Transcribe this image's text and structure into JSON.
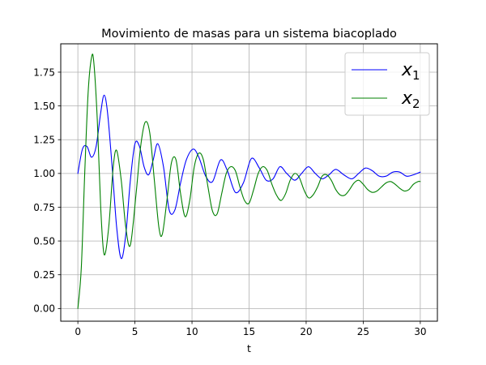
{
  "chart_data": {
    "type": "line",
    "title": "Movimiento de masas para un sistema biacoplado",
    "xlabel": "t",
    "ylabel": "",
    "xlim": [
      -1.5,
      31.5
    ],
    "ylim": [
      -0.094,
      1.96
    ],
    "xticks": [
      0,
      5,
      10,
      15,
      20,
      25,
      30
    ],
    "yticks": [
      0.0,
      0.25,
      0.5,
      0.75,
      1.0,
      1.25,
      1.5,
      1.75
    ],
    "xtick_labels": [
      "0",
      "5",
      "10",
      "15",
      "20",
      "25",
      "30"
    ],
    "ytick_labels": [
      "0.00",
      "0.25",
      "0.50",
      "0.75",
      "1.00",
      "1.25",
      "1.50",
      "1.75"
    ],
    "grid": true,
    "legend_position": "top-right",
    "series": [
      {
        "name": "x1",
        "legend_base": "x",
        "legend_sub": "1",
        "color": "#0000ff",
        "x": [
          0,
          0.4,
          0.8,
          1.2,
          1.6,
          2.0,
          2.3,
          2.6,
          3.0,
          3.4,
          3.8,
          4.2,
          4.6,
          5.0,
          5.4,
          5.8,
          6.2,
          6.6,
          7.0,
          7.5,
          8.0,
          8.5,
          9.0,
          9.5,
          10.1,
          10.6,
          11.2,
          11.8,
          12.5,
          13.1,
          13.8,
          14.5,
          15.2,
          15.9,
          16.5,
          17.1,
          17.7,
          18.3,
          19.0,
          19.6,
          20.2,
          20.8,
          21.4,
          22.0,
          22.6,
          23.3,
          24.0,
          24.6,
          25.2,
          25.8,
          26.4,
          27.0,
          27.6,
          28.2,
          28.8,
          29.4,
          30.0
        ],
        "y": [
          1.0,
          1.18,
          1.2,
          1.12,
          1.2,
          1.45,
          1.58,
          1.45,
          1.05,
          0.6,
          0.37,
          0.55,
          0.95,
          1.22,
          1.2,
          1.05,
          0.99,
          1.1,
          1.22,
          1.05,
          0.73,
          0.73,
          0.93,
          1.1,
          1.18,
          1.12,
          0.98,
          0.94,
          1.1,
          1.02,
          0.86,
          0.93,
          1.11,
          1.04,
          0.95,
          0.96,
          1.05,
          1.0,
          0.95,
          1.0,
          1.05,
          1.0,
          0.96,
          0.99,
          1.03,
          0.99,
          0.96,
          1.0,
          1.04,
          1.02,
          0.98,
          0.98,
          1.01,
          1.01,
          0.98,
          0.99,
          1.01
        ]
      },
      {
        "name": "x2",
        "legend_base": "x",
        "legend_sub": "2",
        "color": "#008000",
        "x": [
          0,
          0.3,
          0.6,
          0.9,
          1.2,
          1.4,
          1.7,
          2.0,
          2.3,
          2.7,
          3.1,
          3.4,
          3.8,
          4.2,
          4.6,
          5.1,
          5.5,
          5.9,
          6.3,
          6.7,
          7.1,
          7.4,
          7.8,
          8.2,
          8.6,
          9.0,
          9.4,
          9.8,
          10.2,
          10.6,
          11.0,
          11.4,
          11.8,
          12.2,
          12.6,
          13.0,
          13.4,
          13.8,
          14.2,
          14.6,
          15.0,
          15.4,
          15.8,
          16.2,
          16.6,
          17.0,
          17.4,
          17.8,
          18.2,
          18.6,
          19.0,
          19.4,
          19.8,
          20.2,
          20.6,
          21.0,
          21.4,
          21.8,
          22.2,
          22.6,
          23.0,
          23.4,
          23.8,
          24.2,
          24.6,
          25.0,
          25.4,
          25.8,
          26.2,
          26.6,
          27.0,
          27.4,
          27.8,
          28.2,
          28.6,
          29.0,
          29.4,
          29.8,
          30.0
        ],
        "y": [
          0.0,
          0.3,
          1.0,
          1.6,
          1.86,
          1.82,
          1.4,
          0.75,
          0.4,
          0.6,
          1.05,
          1.17,
          0.95,
          0.6,
          0.47,
          0.85,
          1.2,
          1.38,
          1.3,
          0.95,
          0.6,
          0.55,
          0.8,
          1.08,
          1.1,
          0.85,
          0.68,
          0.8,
          1.05,
          1.15,
          1.1,
          0.9,
          0.72,
          0.7,
          0.85,
          1.0,
          1.05,
          1.02,
          0.9,
          0.8,
          0.78,
          0.88,
          1.0,
          1.05,
          1.02,
          0.92,
          0.84,
          0.8,
          0.85,
          0.95,
          1.0,
          0.97,
          0.88,
          0.82,
          0.84,
          0.9,
          0.98,
          0.99,
          0.95,
          0.88,
          0.84,
          0.84,
          0.88,
          0.93,
          0.95,
          0.92,
          0.88,
          0.86,
          0.87,
          0.9,
          0.93,
          0.94,
          0.92,
          0.89,
          0.87,
          0.88,
          0.92,
          0.94,
          0.94
        ]
      }
    ]
  }
}
